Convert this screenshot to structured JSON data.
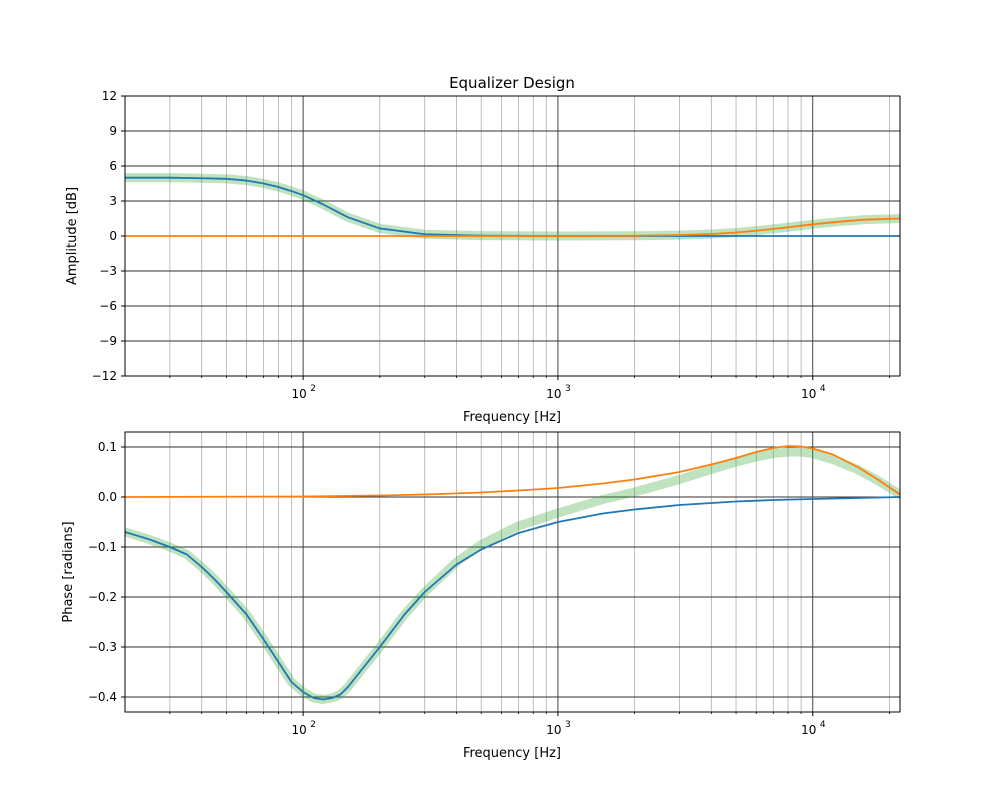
{
  "chart_data": [
    {
      "type": "line",
      "title": "Equalizer Design",
      "xlabel": "Frequency [Hz]",
      "ylabel": "Amplitude [dB]",
      "xscale": "log",
      "xlim": [
        20,
        22000
      ],
      "ylim": [
        -12,
        12
      ],
      "yticks": [
        12,
        9,
        6,
        3,
        0,
        -3,
        -6,
        -9,
        -12
      ],
      "yticklabels": [
        "12",
        "9",
        "6",
        "3",
        "0",
        "−3",
        "−6",
        "−9",
        "−12"
      ],
      "xticks": [
        100,
        1000,
        10000
      ],
      "xticklabels": [
        {
          "base": "10",
          "exp": "2"
        },
        {
          "base": "10",
          "exp": "3"
        },
        {
          "base": "10",
          "exp": "4"
        }
      ],
      "grid": true,
      "series": [
        {
          "color": "#1f77b4",
          "x": [
            20,
            30,
            40,
            50,
            60,
            70,
            80,
            90,
            100,
            120,
            150,
            200,
            300,
            500,
            1000,
            2000,
            5000,
            10000,
            22000
          ],
          "y": [
            5.0,
            5.0,
            4.95,
            4.9,
            4.75,
            4.5,
            4.2,
            3.85,
            3.5,
            2.7,
            1.6,
            0.65,
            0.15,
            0.03,
            0.0,
            0.0,
            0.0,
            0.0,
            0.0
          ]
        },
        {
          "color": "#ff7f0e",
          "x": [
            20,
            100,
            1000,
            2000,
            3000,
            4000,
            5000,
            6000,
            8000,
            10000,
            13000,
            16000,
            22000
          ],
          "y": [
            0.0,
            0.0,
            0.0,
            0.02,
            0.08,
            0.17,
            0.3,
            0.45,
            0.75,
            1.0,
            1.25,
            1.4,
            1.5
          ]
        },
        {
          "color": "#2ca02c",
          "x": [
            20,
            30,
            40,
            50,
            60,
            70,
            80,
            90,
            100,
            120,
            150,
            200,
            300,
            500,
            1000,
            2000,
            3000,
            4000,
            5000,
            6000,
            8000,
            10000,
            13000,
            16000,
            22000
          ],
          "y": [
            5.0,
            5.0,
            4.95,
            4.9,
            4.75,
            4.5,
            4.2,
            3.85,
            3.5,
            2.7,
            1.6,
            0.65,
            0.15,
            0.03,
            0.0,
            0.02,
            0.08,
            0.17,
            0.3,
            0.45,
            0.75,
            1.0,
            1.25,
            1.4,
            1.5
          ],
          "emphasis": "wide translucent"
        }
      ]
    },
    {
      "type": "line",
      "xlabel": "Frequency [Hz]",
      "ylabel": "Phase [radians]",
      "xscale": "log",
      "xlim": [
        20,
        22000
      ],
      "ylim": [
        -0.43,
        0.13
      ],
      "yticks": [
        0.1,
        0.0,
        -0.1,
        -0.2,
        -0.3,
        -0.4
      ],
      "yticklabels": [
        "0.1",
        "0.0",
        "−0.1",
        "−0.2",
        "−0.3",
        "−0.4"
      ],
      "xticks": [
        100,
        1000,
        10000
      ],
      "xticklabels": [
        {
          "base": "10",
          "exp": "2"
        },
        {
          "base": "10",
          "exp": "3"
        },
        {
          "base": "10",
          "exp": "4"
        }
      ],
      "grid": true,
      "series": [
        {
          "color": "#1f77b4",
          "x": [
            20,
            25,
            30,
            35,
            40,
            45,
            50,
            60,
            70,
            80,
            90,
            100,
            110,
            120,
            130,
            140,
            150,
            170,
            200,
            250,
            300,
            400,
            500,
            700,
            1000,
            1500,
            2000,
            3000,
            5000,
            7000,
            10000,
            15000,
            22000
          ],
          "y": [
            -0.07,
            -0.085,
            -0.1,
            -0.115,
            -0.14,
            -0.165,
            -0.19,
            -0.235,
            -0.285,
            -0.33,
            -0.37,
            -0.39,
            -0.402,
            -0.405,
            -0.402,
            -0.395,
            -0.38,
            -0.345,
            -0.3,
            -0.235,
            -0.19,
            -0.135,
            -0.105,
            -0.072,
            -0.05,
            -0.033,
            -0.025,
            -0.016,
            -0.009,
            -0.006,
            -0.004,
            -0.002,
            0.0
          ]
        },
        {
          "color": "#ff7f0e",
          "x": [
            20,
            100,
            200,
            300,
            500,
            700,
            1000,
            1500,
            2000,
            3000,
            4000,
            5000,
            6000,
            7000,
            8000,
            9000,
            10000,
            12000,
            15000,
            18000,
            22000
          ],
          "y": [
            0.0,
            0.001,
            0.003,
            0.005,
            0.009,
            0.013,
            0.018,
            0.027,
            0.035,
            0.05,
            0.065,
            0.078,
            0.09,
            0.098,
            0.102,
            0.101,
            0.097,
            0.085,
            0.06,
            0.035,
            0.005
          ]
        },
        {
          "color": "#2ca02c",
          "x": [
            20,
            25,
            30,
            35,
            40,
            45,
            50,
            60,
            70,
            80,
            90,
            100,
            110,
            120,
            130,
            140,
            150,
            170,
            200,
            250,
            300,
            400,
            500,
            700,
            1000,
            1500,
            2000,
            3000,
            4000,
            5000,
            6000,
            7000,
            8000,
            9000,
            10000,
            12000,
            15000,
            18000,
            22000
          ],
          "y": [
            -0.07,
            -0.085,
            -0.1,
            -0.115,
            -0.14,
            -0.165,
            -0.19,
            -0.235,
            -0.285,
            -0.33,
            -0.37,
            -0.39,
            -0.402,
            -0.405,
            -0.402,
            -0.395,
            -0.38,
            -0.345,
            -0.3,
            -0.235,
            -0.19,
            -0.13,
            -0.095,
            -0.058,
            -0.032,
            -0.005,
            0.01,
            0.035,
            0.055,
            0.07,
            0.08,
            0.087,
            0.09,
            0.09,
            0.087,
            0.075,
            0.055,
            0.033,
            0.005
          ],
          "emphasis": "wide translucent"
        }
      ]
    }
  ]
}
